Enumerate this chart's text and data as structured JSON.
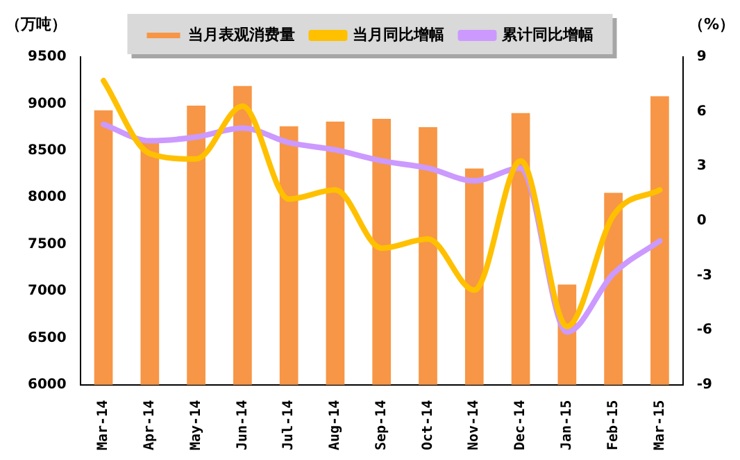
{
  "chart_data": {
    "type": "bar",
    "ylabel": "（万吨）",
    "y2label": "（%）",
    "categories": [
      "Mar-14",
      "Apr-14",
      "May-14",
      "Jun-14",
      "Jul-14",
      "Aug-14",
      "Sep-14",
      "Oct-14",
      "Nov-14",
      "Dec-14",
      "Jan-15",
      "Feb-15",
      "Mar-15"
    ],
    "series": [
      {
        "name": "当月表观消费量",
        "color": "#f79646",
        "values": [
          8930,
          8600,
          8980,
          9190,
          8760,
          8810,
          8840,
          8750,
          8310,
          8900,
          7070,
          8050,
          9080
        ]
      },
      {
        "name": "当月同比增幅",
        "type": "line",
        "axis": "y2",
        "color": "#ffc000",
        "values": [
          7.7,
          3.7,
          3.4,
          6.3,
          1.2,
          1.7,
          -1.5,
          -1.0,
          -3.8,
          3.3,
          -5.8,
          0.3,
          1.7
        ]
      },
      {
        "name": "累计同比增幅",
        "type": "line",
        "axis": "y2",
        "color": "#cc99ff",
        "values": [
          5.3,
          4.4,
          4.6,
          5.1,
          4.3,
          3.9,
          3.3,
          2.9,
          2.2,
          2.9,
          -6.1,
          -2.9,
          -1.1
        ]
      }
    ],
    "ylim": [
      6000,
      9500
    ],
    "yticks": [
      6000,
      6500,
      7000,
      7500,
      8000,
      8500,
      9000,
      9500
    ],
    "y2lim": [
      -9,
      9
    ],
    "y2ticks": [
      -9,
      -6,
      -3,
      0,
      3,
      6,
      9
    ],
    "grid": false,
    "legend": "top"
  }
}
